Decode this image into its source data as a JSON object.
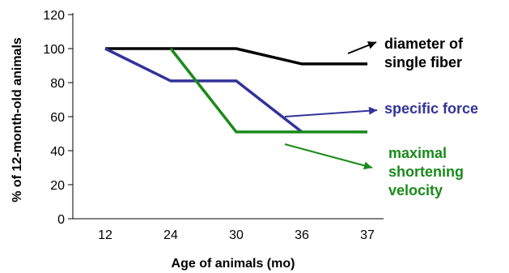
{
  "chart_data": {
    "type": "line",
    "title": "",
    "xlabel": "Age of animals (mo)",
    "ylabel": "% of 12-month-old animals",
    "categories": [
      "12",
      "24",
      "30",
      "36",
      "37"
    ],
    "ylim": [
      0,
      120
    ],
    "yticks": [
      "0",
      "20",
      "40",
      "60",
      "80",
      "100",
      "120"
    ],
    "grid": false,
    "legend": "none",
    "series": [
      {
        "name": "diameter of single fiber",
        "label_lines": [
          "diameter of",
          "single fiber"
        ],
        "color": "#000000",
        "x": [
          12,
          24,
          30,
          36,
          37
        ],
        "values": [
          100,
          100,
          100,
          91,
          91
        ]
      },
      {
        "name": "specific force",
        "label_lines": [
          "specific force"
        ],
        "color": "#33339a",
        "x": [
          12,
          24,
          30,
          36
        ],
        "values": [
          100,
          81,
          81,
          51
        ]
      },
      {
        "name": "maximal shortening velocity",
        "label_lines": [
          "maximal",
          "shortening",
          "velocity"
        ],
        "color": "#1a8a1a",
        "x": [
          24,
          30,
          36,
          37
        ],
        "values": [
          100,
          51,
          51,
          51
        ]
      }
    ]
  }
}
